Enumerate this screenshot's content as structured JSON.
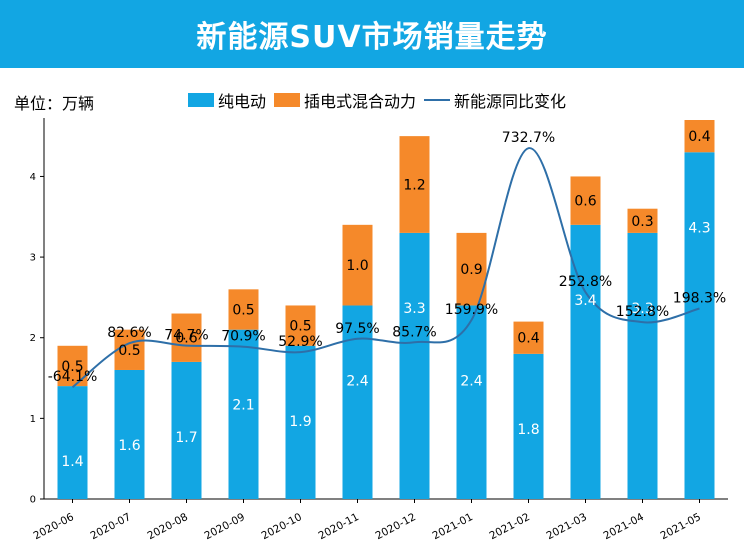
{
  "header": {
    "title": "新能源SUV市场销量走势"
  },
  "unit_label": "单位：万辆",
  "colors": {
    "banner": "#12a6e3",
    "bev": "#12a6e3",
    "phev": "#f5892a",
    "line": "#2e6fa8"
  },
  "chart_data": {
    "type": "bar",
    "stacked": true,
    "categories": [
      "2020-06",
      "2020-07",
      "2020-08",
      "2020-09",
      "2020-10",
      "2020-11",
      "2020-12",
      "2021-01",
      "2021-02",
      "2021-03",
      "2021-04",
      "2021-05"
    ],
    "series": [
      {
        "name": "纯电动",
        "values": [
          1.4,
          1.6,
          1.7,
          2.1,
          1.9,
          2.4,
          3.3,
          2.4,
          1.8,
          3.4,
          3.3,
          4.3
        ],
        "value_labels": [
          "1.4",
          "1.6",
          "1.7",
          "2.1",
          "1.9",
          "2.4",
          "3.3",
          "2.4",
          "1.8",
          "3.4",
          "3.3",
          "4.3"
        ]
      },
      {
        "name": "插电式混合动力",
        "values": [
          0.5,
          0.5,
          0.6,
          0.5,
          0.5,
          1.0,
          1.2,
          0.9,
          0.4,
          0.6,
          0.3,
          0.4
        ],
        "value_labels": [
          "0.5",
          "0.5",
          "0.6",
          "0.5",
          "0.5",
          "1.0",
          "1.2",
          "0.9",
          "0.4",
          "0.6",
          "0.3",
          "0.4"
        ]
      }
    ],
    "line_series": {
      "name": "新能源同比变化",
      "values": [
        -64.1,
        82.6,
        74.7,
        70.9,
        52.9,
        97.5,
        85.7,
        159.9,
        732.7,
        252.8,
        152.8,
        198.3
      ],
      "value_labels": [
        "-64.1%",
        "82.6%",
        "74.7%",
        "70.9%",
        "52.9%",
        "97.5%",
        "85.7%",
        "159.9%",
        "732.7%",
        "252.8%",
        "152.8%",
        "198.3%"
      ]
    },
    "ylim": [
      0,
      4.7
    ],
    "yticks": [
      0,
      1,
      2,
      3,
      4
    ],
    "ytick_labels": [
      "0",
      "1",
      "2",
      "3",
      "4"
    ],
    "legend": "top"
  }
}
